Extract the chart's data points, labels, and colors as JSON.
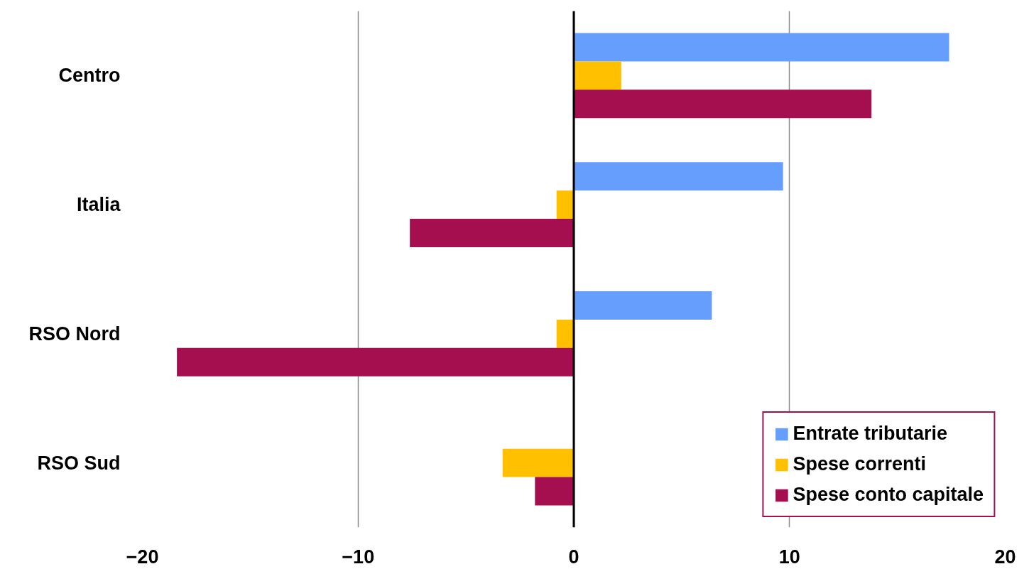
{
  "chart_data": {
    "type": "bar",
    "orientation": "horizontal",
    "categories": [
      "Centro",
      "Italia",
      "RSO Nord",
      "RSO Sud"
    ],
    "series": [
      {
        "name": "Entrate tributarie",
        "color": "#669efe",
        "values": [
          17.4,
          9.7,
          6.4,
          null
        ]
      },
      {
        "name": "Spese correnti",
        "color": "#ffc000",
        "values": [
          2.2,
          -0.8,
          -0.8,
          -3.3
        ]
      },
      {
        "name": "Spese conto capitale",
        "color": "#a50f4f",
        "values": [
          13.8,
          -7.6,
          -18.4,
          -1.8
        ]
      }
    ],
    "xlim": [
      -20,
      20
    ],
    "xticks": [
      -20,
      -10,
      0,
      10,
      20
    ],
    "grid": "x",
    "legend": "bottom right"
  }
}
